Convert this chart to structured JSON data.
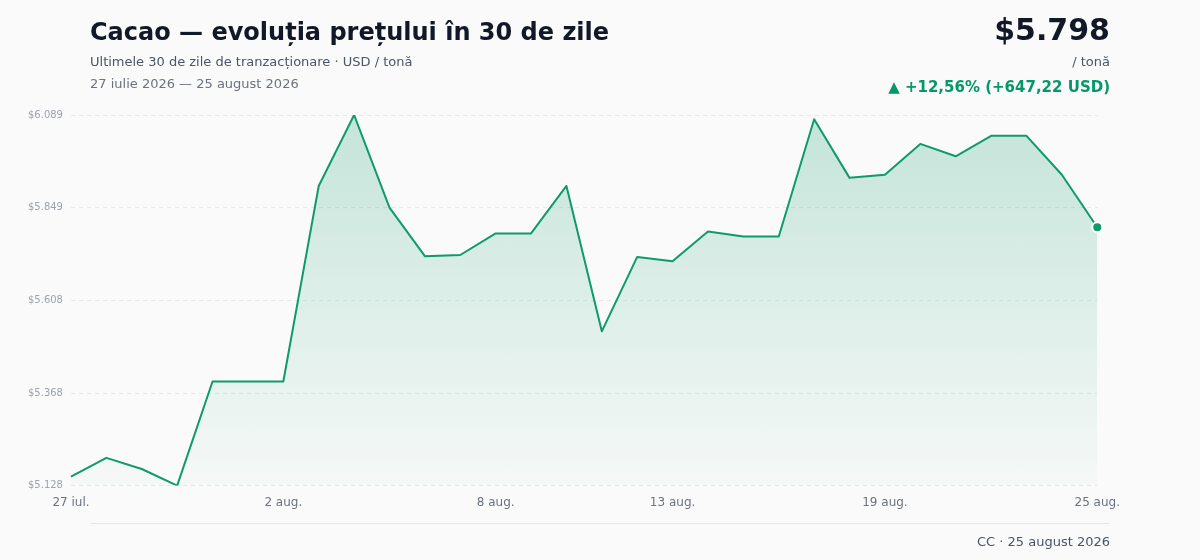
{
  "chart_data": {
    "type": "area",
    "title": "Cacao — evoluția prețului în 30 de zile",
    "subtitle": "Ultimele 30 de zile de tranzacționare · USD / tonă",
    "annotations": [
      "27 iulie 2026 — 25 august 2026",
      "$5.798",
      "/ tonă",
      "▲ +12,56% (+647,22 USD)",
      "CC · 25 august 2026"
    ],
    "categories": [
      "27 iul.",
      null,
      null,
      null,
      null,
      null,
      "2 aug.",
      null,
      null,
      null,
      null,
      null,
      "8 aug.",
      null,
      null,
      null,
      null,
      "13 aug.",
      null,
      null,
      null,
      null,
      null,
      "19 aug.",
      null,
      null,
      null,
      null,
      null,
      "25 aug."
    ],
    "series": [
      {
        "color": "#0e9a6a",
        "values": [
          5151,
          5200,
          5171,
          5128,
          5398,
          5398,
          5398,
          5905,
          6089,
          5849,
          5723,
          5726,
          5782,
          5782,
          5905,
          5528,
          5721,
          5710,
          5787,
          5774,
          5774,
          6078,
          5926,
          5934,
          6014,
          5982,
          6035,
          6035,
          5934,
          5798
        ]
      }
    ],
    "ylim": [
      5128,
      6089
    ],
    "yticks": [
      {
        "value": 5128,
        "label": "$5.128"
      },
      {
        "value": 5368,
        "label": "$5.368"
      },
      {
        "value": 5608,
        "label": "$5.608"
      },
      {
        "value": 5849,
        "label": "$5.849"
      },
      {
        "value": 6089,
        "label": "$6.089"
      }
    ],
    "grid": "y",
    "legend": false
  }
}
